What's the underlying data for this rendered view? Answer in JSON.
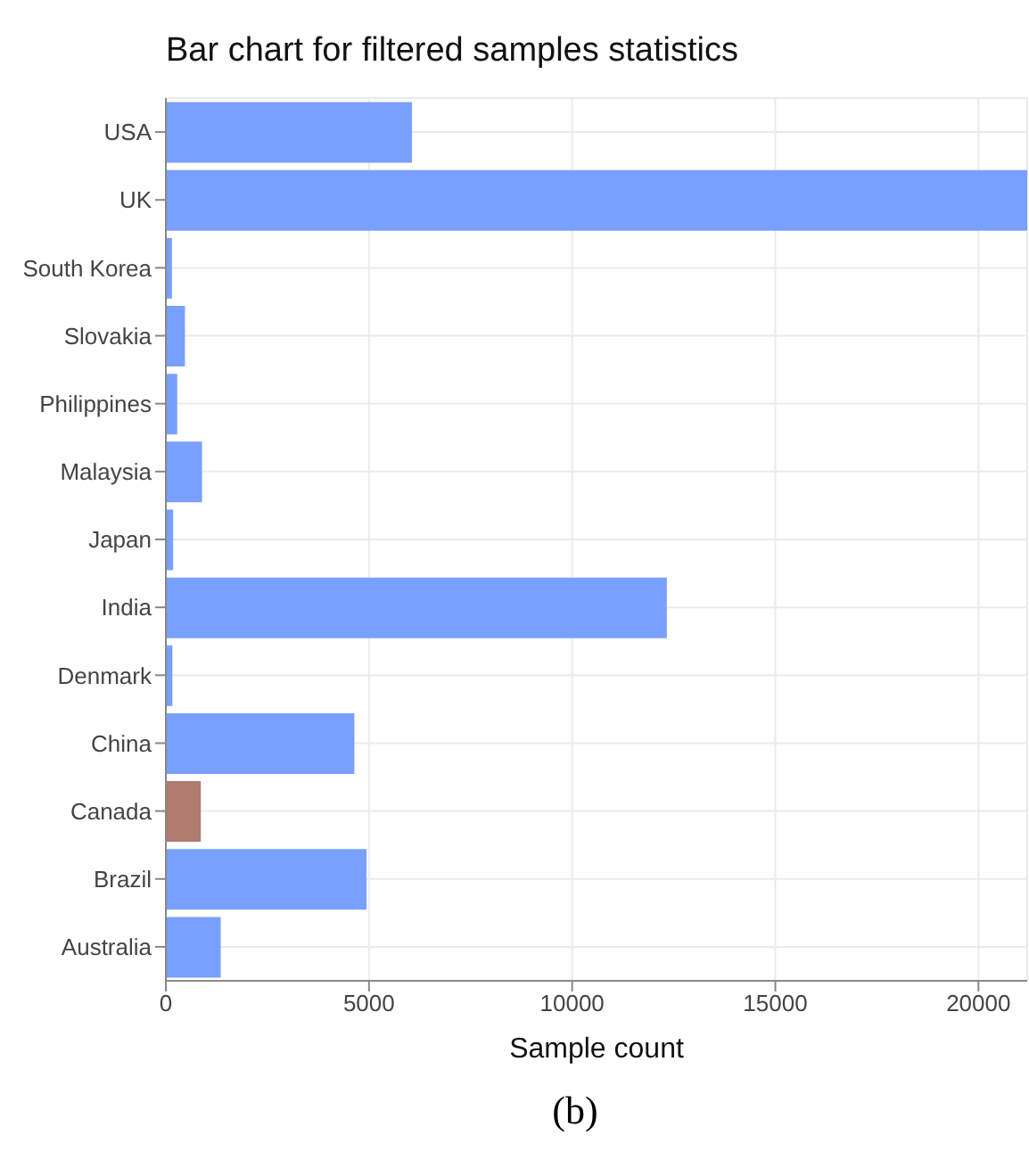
{
  "chart_data": {
    "type": "bar",
    "orientation": "horizontal",
    "title": "Bar chart for filtered samples statistics",
    "xlabel": "Sample count",
    "categories": [
      "USA",
      "UK",
      "South Korea",
      "Slovakia",
      "Philippines",
      "Malaysia",
      "Japan",
      "India",
      "Denmark",
      "China",
      "Canada",
      "Brazil",
      "Australia"
    ],
    "values": [
      6060,
      21200,
      150,
      470,
      280,
      890,
      180,
      12330,
      160,
      4640,
      860,
      4940,
      1350
    ],
    "colors": [
      "#799fff",
      "#799fff",
      "#799fff",
      "#799fff",
      "#799fff",
      "#799fff",
      "#799fff",
      "#799fff",
      "#799fff",
      "#799fff",
      "#ae7b6e",
      "#799fff",
      "#799fff"
    ],
    "xlim": [
      0,
      21200
    ],
    "xticks": [
      0,
      5000,
      10000,
      15000,
      20000
    ],
    "grid": true,
    "annotations": [
      "(b)"
    ]
  }
}
